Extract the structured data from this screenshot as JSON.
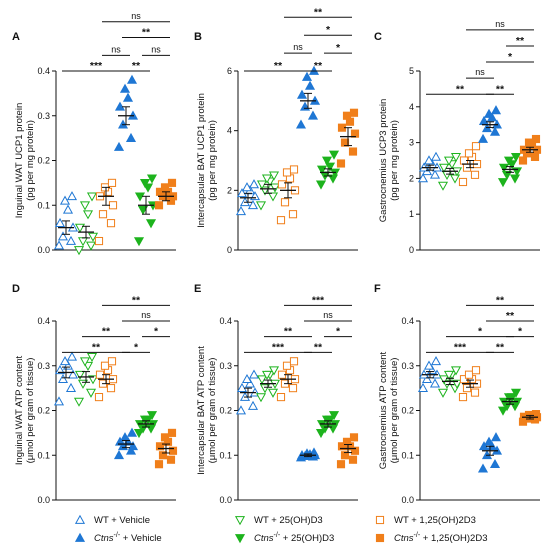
{
  "colors": {
    "blue": "#1f77d4",
    "green": "#1db31d",
    "orange": "#f07f1a",
    "axis": "#111111"
  },
  "legend": [
    {
      "prefix": "",
      "italic": "",
      "text": "WT + Vehicle",
      "color": "#1f77d4",
      "filled": false,
      "marker": "triangle-up"
    },
    {
      "prefix": "",
      "italic": "",
      "text": "WT + 25(OH)D3",
      "color": "#1db31d",
      "filled": false,
      "marker": "triangle-down"
    },
    {
      "prefix": "",
      "italic": "",
      "text": "WT + 1,25(OH)2D3",
      "color": "#f07f1a",
      "filled": false,
      "marker": "square"
    },
    {
      "prefix": "",
      "italic": "Ctns",
      "text": " + Vehicle",
      "color": "#1f77d4",
      "filled": true,
      "marker": "triangle-up"
    },
    {
      "prefix": "",
      "italic": "Ctns",
      "text": " + 25(OH)D3",
      "color": "#1db31d",
      "filled": true,
      "marker": "triangle-down"
    },
    {
      "prefix": "",
      "italic": "Ctns",
      "text": " + 1,25(OH)2D3",
      "color": "#f07f1a",
      "filled": true,
      "marker": "square"
    }
  ],
  "legend_superscript": "-/-",
  "chart_data": [
    {
      "panel": "A",
      "type": "scatter",
      "ylabel_lines": [
        "Inguinal WAT UCP1 protein",
        "(pg per mg protein)"
      ],
      "ylim": [
        0,
        0.4
      ],
      "yticks": [
        0.0,
        0.1,
        0.2,
        0.3,
        0.4
      ],
      "tick_labels": [
        "0.0",
        "0.1",
        "0.2",
        "0.3",
        "0.4"
      ],
      "groups": [
        {
          "mean": 0.05,
          "sem": 0.015,
          "points": [
            0.01,
            0.02,
            0.03,
            0.05,
            0.06,
            0.09,
            0.11,
            0.12
          ]
        },
        {
          "mean": 0.04,
          "sem": 0.013,
          "points": [
            0.0,
            0.01,
            0.02,
            0.03,
            0.05,
            0.08,
            0.1,
            0.12
          ]
        },
        {
          "mean": 0.12,
          "sem": 0.02,
          "points": [
            0.02,
            0.06,
            0.08,
            0.1,
            0.12,
            0.13,
            0.14,
            0.15
          ]
        },
        {
          "mean": 0.3,
          "sem": 0.02,
          "points": [
            0.23,
            0.25,
            0.28,
            0.3,
            0.32,
            0.34,
            0.36,
            0.38
          ]
        },
        {
          "mean": 0.1,
          "sem": 0.02,
          "points": [
            0.02,
            0.06,
            0.09,
            0.1,
            0.12,
            0.14,
            0.15,
            0.16
          ]
        },
        {
          "mean": 0.12,
          "sem": 0.01,
          "points": [
            0.1,
            0.11,
            0.12,
            0.12,
            0.13,
            0.13,
            0.14,
            0.15
          ]
        }
      ],
      "comparisons": [
        {
          "from": 0,
          "to": 3,
          "label": "***",
          "y": 0.4
        },
        {
          "from": 2,
          "to": 3,
          "label": "ns",
          "y": 0.435
        },
        {
          "from": 3,
          "to": 4,
          "label": "**",
          "y": 0.4
        },
        {
          "from": 3,
          "to": 5,
          "label": "**",
          "y": 0.475
        },
        {
          "from": 4,
          "to": 5,
          "label": "ns",
          "y": 0.435
        },
        {
          "from": 2,
          "to": 5,
          "label": "ns",
          "y": 0.51
        }
      ]
    },
    {
      "panel": "B",
      "type": "scatter",
      "ylabel_lines": [
        "Intercapsular BAT UCP1 protein",
        "(pg per mg protein)"
      ],
      "ylim": [
        0,
        6
      ],
      "yticks": [
        0,
        2,
        4,
        6
      ],
      "tick_labels": [
        "0",
        "2",
        "4",
        "6"
      ],
      "groups": [
        {
          "mean": 1.75,
          "sem": 0.15,
          "points": [
            1.3,
            1.5,
            1.6,
            1.8,
            1.9,
            2.0,
            2.1,
            2.2
          ]
        },
        {
          "mean": 2.05,
          "sem": 0.15,
          "points": [
            1.5,
            1.8,
            2.0,
            2.1,
            2.2,
            2.3,
            2.4,
            2.5
          ]
        },
        {
          "mean": 2.0,
          "sem": 0.25,
          "points": [
            1.0,
            1.2,
            1.6,
            2.0,
            2.2,
            2.4,
            2.6,
            2.7
          ]
        },
        {
          "mean": 5.0,
          "sem": 0.25,
          "points": [
            4.2,
            4.5,
            4.8,
            5.0,
            5.2,
            5.5,
            5.8,
            6.0
          ]
        },
        {
          "mean": 2.6,
          "sem": 0.12,
          "points": [
            2.2,
            2.4,
            2.5,
            2.6,
            2.7,
            2.8,
            3.0,
            3.2
          ]
        },
        {
          "mean": 3.8,
          "sem": 0.3,
          "points": [
            2.9,
            3.3,
            3.6,
            3.9,
            4.1,
            4.3,
            4.5,
            4.6
          ]
        }
      ],
      "comparisons": [
        {
          "from": 0,
          "to": 3,
          "label": "**",
          "y": 6.0
        },
        {
          "from": 2,
          "to": 3,
          "label": "ns",
          "y": 6.6
        },
        {
          "from": 3,
          "to": 4,
          "label": "**",
          "y": 6.0
        },
        {
          "from": 3,
          "to": 5,
          "label": "*",
          "y": 7.2
        },
        {
          "from": 4,
          "to": 5,
          "label": "*",
          "y": 6.6
        },
        {
          "from": 2,
          "to": 5,
          "label": "**",
          "y": 7.8
        }
      ]
    },
    {
      "panel": "C",
      "type": "scatter",
      "ylabel_lines": [
        "Gastrocnemius UCP3 protein",
        "(pg per mg protein)"
      ],
      "ylim": [
        0,
        5
      ],
      "yticks": [
        0,
        1,
        2,
        3,
        4,
        5
      ],
      "tick_labels": [
        "0",
        "1",
        "2",
        "3",
        "4",
        "5"
      ],
      "groups": [
        {
          "mean": 2.3,
          "sem": 0.07,
          "points": [
            2.0,
            2.1,
            2.2,
            2.3,
            2.3,
            2.4,
            2.5,
            2.6
          ]
        },
        {
          "mean": 2.2,
          "sem": 0.08,
          "points": [
            1.8,
            2.0,
            2.1,
            2.2,
            2.3,
            2.4,
            2.5,
            2.6
          ]
        },
        {
          "mean": 2.4,
          "sem": 0.1,
          "points": [
            1.9,
            2.1,
            2.3,
            2.4,
            2.5,
            2.6,
            2.7,
            2.9
          ]
        },
        {
          "mean": 3.5,
          "sem": 0.08,
          "points": [
            3.1,
            3.3,
            3.4,
            3.5,
            3.6,
            3.7,
            3.8,
            3.9
          ]
        },
        {
          "mean": 2.25,
          "sem": 0.08,
          "points": [
            1.9,
            2.0,
            2.1,
            2.2,
            2.3,
            2.4,
            2.5,
            2.6
          ]
        },
        {
          "mean": 2.8,
          "sem": 0.07,
          "points": [
            2.5,
            2.6,
            2.7,
            2.8,
            2.8,
            2.9,
            3.0,
            3.1
          ]
        }
      ],
      "comparisons": [
        {
          "from": 0,
          "to": 3,
          "label": "**",
          "y": 4.35
        },
        {
          "from": 2,
          "to": 3,
          "label": "ns",
          "y": 4.8
        },
        {
          "from": 3,
          "to": 4,
          "label": "**",
          "y": 4.35
        },
        {
          "from": 3,
          "to": 5,
          "label": "*",
          "y": 5.25
        },
        {
          "from": 4,
          "to": 5,
          "label": "**",
          "y": 5.7
        },
        {
          "from": 2,
          "to": 5,
          "label": "ns",
          "y": 6.15
        }
      ]
    },
    {
      "panel": "D",
      "type": "scatter",
      "ylabel_lines": [
        "Inguinal WAT ATP content",
        "(μmol per gram of tissue)"
      ],
      "ylim": [
        0,
        0.4
      ],
      "yticks": [
        0.0,
        0.1,
        0.2,
        0.3,
        0.4
      ],
      "tick_labels": [
        "0.0",
        "0.1",
        "0.2",
        "0.3",
        "0.4"
      ],
      "groups": [
        {
          "mean": 0.285,
          "sem": 0.012,
          "points": [
            0.22,
            0.25,
            0.27,
            0.28,
            0.29,
            0.3,
            0.31,
            0.32
          ]
        },
        {
          "mean": 0.275,
          "sem": 0.012,
          "points": [
            0.22,
            0.24,
            0.26,
            0.27,
            0.28,
            0.3,
            0.31,
            0.32
          ]
        },
        {
          "mean": 0.27,
          "sem": 0.01,
          "points": [
            0.23,
            0.25,
            0.26,
            0.27,
            0.28,
            0.29,
            0.3,
            0.31
          ]
        },
        {
          "mean": 0.125,
          "sem": 0.008,
          "points": [
            0.1,
            0.11,
            0.12,
            0.12,
            0.13,
            0.13,
            0.14,
            0.15
          ]
        },
        {
          "mean": 0.17,
          "sem": 0.007,
          "points": [
            0.15,
            0.16,
            0.16,
            0.17,
            0.17,
            0.18,
            0.18,
            0.19
          ]
        },
        {
          "mean": 0.115,
          "sem": 0.01,
          "points": [
            0.08,
            0.09,
            0.1,
            0.11,
            0.12,
            0.13,
            0.14,
            0.15
          ]
        }
      ],
      "comparisons": [
        {
          "from": 0,
          "to": 3,
          "label": "**",
          "y": 0.33
        },
        {
          "from": 1,
          "to": 3,
          "label": "**",
          "y": 0.365
        },
        {
          "from": 3,
          "to": 4,
          "label": "*",
          "y": 0.33
        },
        {
          "from": 3,
          "to": 5,
          "label": "ns",
          "y": 0.4
        },
        {
          "from": 4,
          "to": 5,
          "label": "*",
          "y": 0.365
        },
        {
          "from": 2,
          "to": 5,
          "label": "**",
          "y": 0.435
        }
      ]
    },
    {
      "panel": "E",
      "type": "scatter",
      "ylabel_lines": [
        "Intercapsular BAT ATP content",
        "(μmol per gram of tissue)"
      ],
      "ylim": [
        0,
        0.4
      ],
      "yticks": [
        0.0,
        0.1,
        0.2,
        0.3,
        0.4
      ],
      "tick_labels": [
        "0.0",
        "0.1",
        "0.2",
        "0.3",
        "0.4"
      ],
      "groups": [
        {
          "mean": 0.24,
          "sem": 0.01,
          "points": [
            0.2,
            0.21,
            0.23,
            0.24,
            0.25,
            0.26,
            0.27,
            0.28
          ]
        },
        {
          "mean": 0.26,
          "sem": 0.008,
          "points": [
            0.23,
            0.24,
            0.25,
            0.26,
            0.27,
            0.28,
            0.28,
            0.29
          ]
        },
        {
          "mean": 0.27,
          "sem": 0.01,
          "points": [
            0.23,
            0.25,
            0.26,
            0.27,
            0.28,
            0.29,
            0.3,
            0.31
          ]
        },
        {
          "mean": 0.1,
          "sem": 0.003,
          "points": [
            0.095,
            0.097,
            0.098,
            0.1,
            0.1,
            0.102,
            0.104,
            0.106
          ]
        },
        {
          "mean": 0.17,
          "sem": 0.007,
          "points": [
            0.15,
            0.16,
            0.16,
            0.17,
            0.17,
            0.18,
            0.18,
            0.19
          ]
        },
        {
          "mean": 0.115,
          "sem": 0.009,
          "points": [
            0.08,
            0.09,
            0.1,
            0.11,
            0.12,
            0.12,
            0.13,
            0.14
          ]
        }
      ],
      "comparisons": [
        {
          "from": 0,
          "to": 3,
          "label": "***",
          "y": 0.33
        },
        {
          "from": 1,
          "to": 3,
          "label": "**",
          "y": 0.365
        },
        {
          "from": 3,
          "to": 4,
          "label": "**",
          "y": 0.33
        },
        {
          "from": 3,
          "to": 5,
          "label": "ns",
          "y": 0.4
        },
        {
          "from": 4,
          "to": 5,
          "label": "*",
          "y": 0.365
        },
        {
          "from": 2,
          "to": 5,
          "label": "***",
          "y": 0.435
        }
      ]
    },
    {
      "panel": "F",
      "type": "scatter",
      "ylabel_lines": [
        "Gastrocnemius ATP content",
        "(μmol per gram of tissue)"
      ],
      "ylim": [
        0,
        0.4
      ],
      "yticks": [
        0.0,
        0.1,
        0.2,
        0.3,
        0.4
      ],
      "tick_labels": [
        "0.0",
        "0.1",
        "0.2",
        "0.3",
        "0.4"
      ],
      "groups": [
        {
          "mean": 0.28,
          "sem": 0.007,
          "points": [
            0.25,
            0.26,
            0.27,
            0.28,
            0.28,
            0.29,
            0.3,
            0.31
          ]
        },
        {
          "mean": 0.265,
          "sem": 0.007,
          "points": [
            0.24,
            0.25,
            0.26,
            0.26,
            0.27,
            0.28,
            0.28,
            0.29
          ]
        },
        {
          "mean": 0.26,
          "sem": 0.008,
          "points": [
            0.23,
            0.24,
            0.25,
            0.26,
            0.27,
            0.27,
            0.28,
            0.29
          ]
        },
        {
          "mean": 0.11,
          "sem": 0.01,
          "points": [
            0.07,
            0.08,
            0.1,
            0.11,
            0.12,
            0.12,
            0.13,
            0.14
          ]
        },
        {
          "mean": 0.22,
          "sem": 0.006,
          "points": [
            0.2,
            0.21,
            0.21,
            0.22,
            0.22,
            0.23,
            0.23,
            0.24
          ]
        },
        {
          "mean": 0.185,
          "sem": 0.004,
          "points": [
            0.175,
            0.18,
            0.182,
            0.185,
            0.186,
            0.188,
            0.19,
            0.192
          ]
        }
      ],
      "comparisons": [
        {
          "from": 0,
          "to": 3,
          "label": "***",
          "y": 0.33
        },
        {
          "from": 3,
          "to": 4,
          "label": "**",
          "y": 0.33
        },
        {
          "from": 1,
          "to": 4,
          "label": "*",
          "y": 0.365
        },
        {
          "from": 4,
          "to": 5,
          "label": "*",
          "y": 0.365
        },
        {
          "from": 3,
          "to": 5,
          "label": "**",
          "y": 0.4
        },
        {
          "from": 2,
          "to": 5,
          "label": "**",
          "y": 0.435
        }
      ]
    }
  ]
}
